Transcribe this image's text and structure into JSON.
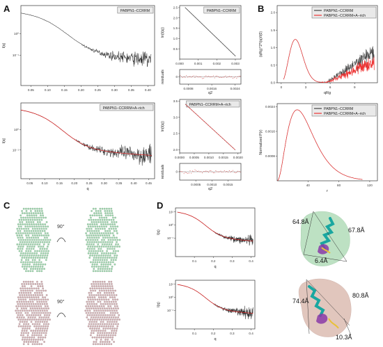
{
  "panel_labels": [
    "A",
    "B",
    "C",
    "D"
  ],
  "chart_data": [
    {
      "id": "A1",
      "type": "line",
      "legend": "PABPN1–CCRRM",
      "xlabel": "",
      "ylabel": "I(q)",
      "yscale": "log",
      "xlim": [
        0.02,
        0.42
      ],
      "ylim": [
        -2.4,
        1.3
      ],
      "xticks": [
        "0.05",
        "0.10",
        "0.15",
        "0.20",
        "0.25",
        "0.30",
        "0.35",
        "0.40"
      ],
      "yticks": [
        "10⁻¹",
        "10⁰"
      ],
      "series": [
        {
          "color": "#333333"
        }
      ]
    },
    {
      "id": "A2",
      "type": "line",
      "legend": "PABPN1–CCRRM",
      "xlabel": "",
      "ylabel": "ln(I(q))",
      "xlim": [
        0.0,
        0.0033
      ],
      "ylim": [
        0.0,
        2.6
      ],
      "xticks": [
        "0.000",
        "0.001",
        "0.002",
        "0.003"
      ],
      "yticks": [
        "0.5",
        "1.0",
        "1.5",
        "2.0",
        "2.5"
      ],
      "series": [
        {
          "x": [
            0.0003,
            0.003
          ],
          "y": [
            2.5,
            0.15
          ],
          "color": "#333333"
        }
      ]
    },
    {
      "id": "A3",
      "type": "scatter",
      "legend": "",
      "xlabel": "q2",
      "ylabel": "residuals",
      "xlim": [
        0.0005,
        0.0026
      ],
      "ylim": [
        -1,
        1
      ],
      "xticks": [
        "0.0008",
        "0.0016",
        "0.0024"
      ],
      "yticks": [
        "0"
      ],
      "series": [
        {
          "color": "#cc2222"
        }
      ]
    },
    {
      "id": "A4",
      "type": "line",
      "legend": "PABPN1–CCRRM+A–rich",
      "xlabel": "q",
      "ylabel": "I(q)",
      "yscale": "log",
      "xlim": [
        0.02,
        0.47
      ],
      "ylim": [
        -2.4,
        1.3
      ],
      "xticks": [
        "0.05",
        "0.10",
        "0.15",
        "0.20",
        "0.25",
        "0.30",
        "0.35",
        "0.40",
        "0.45"
      ],
      "yticks": [
        "10⁻¹",
        "10⁰"
      ],
      "series": [
        {
          "color": "#333333"
        },
        {
          "color": "#dd2222"
        }
      ]
    },
    {
      "id": "A5",
      "type": "line",
      "legend": "PABPN1–CCRRM+A–rich",
      "xlabel": "",
      "ylabel": "ln(I(q))",
      "xlim": [
        0.0,
        0.0021
      ],
      "ylim": [
        1.9,
        3.55
      ],
      "xticks": [
        "0.0000",
        "0.0005",
        "0.0010",
        "0.0015",
        "0.0020"
      ],
      "yticks": [
        "2.0",
        "2.5",
        "3.0",
        "3.5"
      ],
      "series": [
        {
          "x": [
            0.0002,
            0.0019
          ],
          "y": [
            3.4,
            2.0
          ],
          "color": "#dd2222"
        }
      ]
    },
    {
      "id": "A6",
      "type": "scatter",
      "legend": "",
      "xlabel": "q2",
      "ylabel": "residuals",
      "xlim": [
        0.0,
        0.0019
      ],
      "ylim": [
        -1,
        1
      ],
      "xticks": [
        "0.0005",
        "0.0010",
        "0.0015"
      ],
      "yticks": [
        "0"
      ],
      "series": [
        {
          "color": "#cc2222"
        }
      ]
    },
    {
      "id": "B1",
      "type": "line",
      "legend": [
        "PABPN1–CCRRM",
        "PABPN1–CCRRM+A–rich"
      ],
      "xlabel": "qRg",
      "ylabel": "(qRg)^2*I(q)/I(0)",
      "xlim": [
        -0.5,
        11.8
      ],
      "ylim": [
        0.0,
        2.2
      ],
      "xticks": [
        "0",
        "3",
        "6",
        "9"
      ],
      "yticks": [
        "0.0",
        "0.5",
        "1.0",
        "1.5",
        "2.0"
      ],
      "series": [
        {
          "color": "#444444"
        },
        {
          "color": "#ee3333"
        }
      ]
    },
    {
      "id": "B2",
      "type": "line",
      "legend": [
        "PABPN1–CCRRM",
        "PABPN1–CCRRM+A–rich"
      ],
      "xlabel": "r",
      "ylabel": "Normalized P(r)",
      "xlim": [
        0,
        130
      ],
      "ylim": [
        0,
        0.0025
      ],
      "xticks": [
        "40",
        "80",
        "120"
      ],
      "yticks": [
        "0.0008",
        "0.0016",
        "0.0024"
      ],
      "series": [
        {
          "color": "#444444"
        },
        {
          "color": "#ee3333"
        }
      ]
    },
    {
      "id": "D1",
      "type": "line",
      "legend": "",
      "xlabel": "q",
      "ylabel": "I(q)",
      "yscale": "log",
      "xlim": [
        0.0,
        0.42
      ],
      "ylim": [
        -2.4,
        1.3
      ],
      "xticks": [
        "0.1",
        "0.2",
        "0.3",
        "0.4"
      ],
      "yticks": [
        "10⁻¹",
        "10⁰",
        "10¹"
      ],
      "series": [
        {
          "color": "#333333"
        },
        {
          "color": "#dd2222"
        }
      ]
    },
    {
      "id": "D2",
      "type": "line",
      "legend": "",
      "xlabel": "q",
      "ylabel": "I(q)",
      "yscale": "log",
      "xlim": [
        0.0,
        0.42
      ],
      "ylim": [
        -2.4,
        1.3
      ],
      "xticks": [
        "0.1",
        "0.2",
        "0.3",
        "0.4"
      ],
      "yticks": [
        "10⁻¹",
        "10⁰",
        "10¹"
      ],
      "series": [
        {
          "color": "#333333"
        },
        {
          "color": "#dd2222"
        }
      ]
    }
  ],
  "panel_c": {
    "rotation_label_top": "90°",
    "rotation_label_bottom": "90°",
    "colors": {
      "top": "#8fcfa0",
      "bottom": "#c9a2a6"
    }
  },
  "panel_d_models": {
    "top": {
      "dims": [
        "64.8Å",
        "67.8Å",
        "6.4Å"
      ],
      "envelope": "#a8d8b0"
    },
    "bottom": {
      "dims": [
        "74.4Å",
        "80.8Å",
        "10.3Å"
      ],
      "envelope": "#d8b4a8"
    }
  }
}
